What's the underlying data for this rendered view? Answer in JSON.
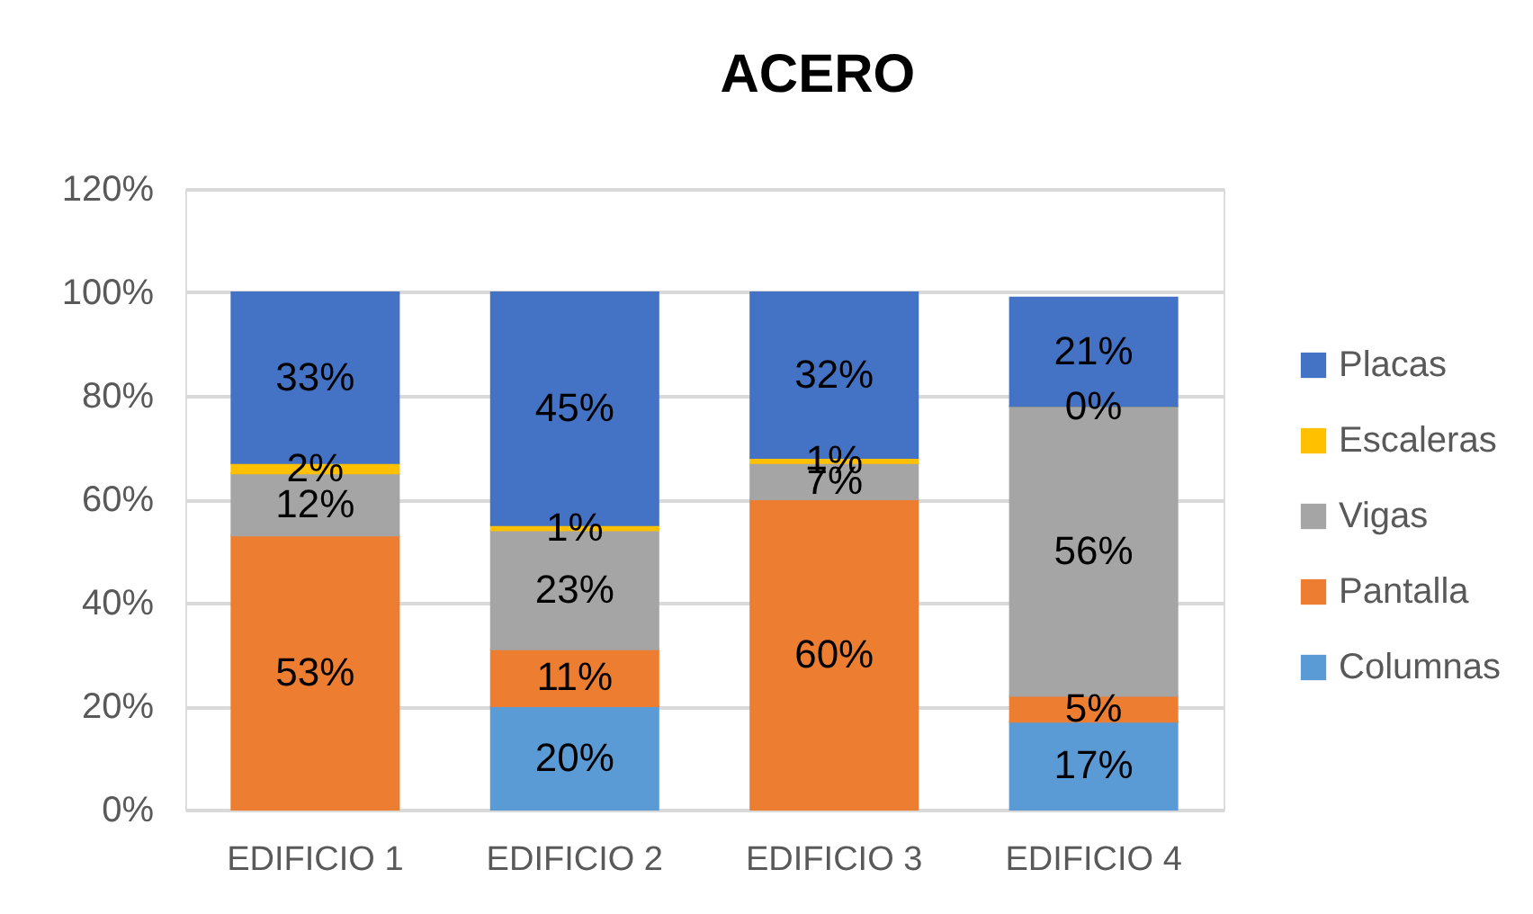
{
  "chart_data": {
    "type": "bar",
    "title": "ACERO",
    "categories": [
      "EDIFICIO 1",
      "EDIFICIO 2",
      "EDIFICIO 3",
      "EDIFICIO 4"
    ],
    "stacked": true,
    "series": [
      {
        "name": "Columnas",
        "color": "#5b9bd5",
        "values": [
          null,
          20,
          null,
          17
        ],
        "value_labels": [
          null,
          "20%",
          null,
          "17%"
        ]
      },
      {
        "name": "Pantalla",
        "color": "#ed7d31",
        "values": [
          53,
          11,
          60,
          5
        ],
        "value_labels": [
          "53%",
          "11%",
          "60%",
          "5%"
        ]
      },
      {
        "name": "Vigas",
        "color": "#a5a5a5",
        "values": [
          12,
          23,
          7,
          56
        ],
        "value_labels": [
          "12%",
          "23%",
          "7%",
          "56%"
        ]
      },
      {
        "name": "Escaleras",
        "color": "#ffc000",
        "values": [
          2,
          1,
          1,
          0
        ],
        "value_labels": [
          "2%",
          "1%",
          "1%",
          "0%"
        ]
      },
      {
        "name": "Placas",
        "color": "#4472c4",
        "values": [
          33,
          45,
          32,
          21
        ],
        "value_labels": [
          "33%",
          "45%",
          "32%",
          "21%"
        ]
      }
    ],
    "ylim": [
      0,
      120
    ],
    "yticks": [
      {
        "value": 0,
        "label": "0%"
      },
      {
        "value": 20,
        "label": "20%"
      },
      {
        "value": 40,
        "label": "40%"
      },
      {
        "value": 60,
        "label": "60%"
      },
      {
        "value": 80,
        "label": "80%"
      },
      {
        "value": 100,
        "label": "100%"
      },
      {
        "value": 120,
        "label": "120%"
      }
    ],
    "grid": "y",
    "legend": "right"
  }
}
